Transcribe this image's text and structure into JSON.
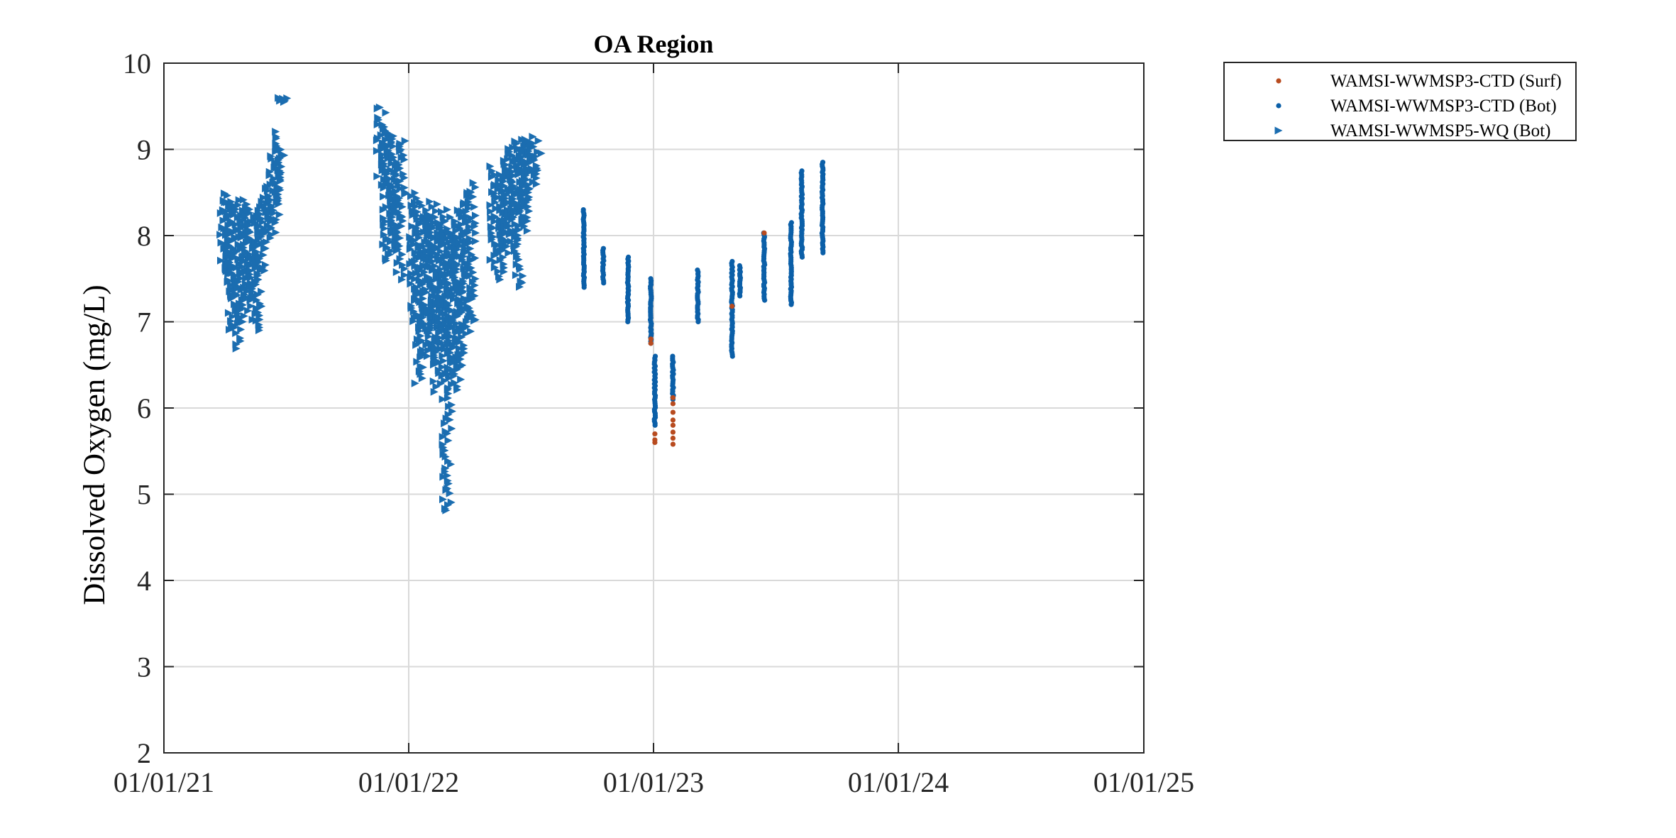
{
  "chart_data": {
    "type": "scatter",
    "title": "OA Region",
    "xlabel": "",
    "ylabel": "Dissolved Oxygen (mg/L)",
    "xlim": [
      "2021-01-01",
      "2025-01-01"
    ],
    "ylim": [
      2,
      10
    ],
    "x_ticks": [
      "01/01/21",
      "01/01/22",
      "01/01/23",
      "01/01/24",
      "01/01/25"
    ],
    "y_ticks": [
      "2",
      "3",
      "4",
      "5",
      "6",
      "7",
      "8",
      "9",
      "10"
    ],
    "grid": true,
    "legend_position": "outside-top-right",
    "series": [
      {
        "name": "WAMSI-WWMSP3-CTD (Surf)",
        "marker": "dot",
        "color": "#b84b1f",
        "points": [
          [
            "2022-12-28",
            6.75
          ],
          [
            "2022-12-28",
            6.8
          ],
          [
            "2023-01-03",
            5.6
          ],
          [
            "2023-01-03",
            5.63
          ],
          [
            "2023-01-03",
            5.7
          ],
          [
            "2023-01-30",
            5.58
          ],
          [
            "2023-01-30",
            5.65
          ],
          [
            "2023-01-30",
            5.72
          ],
          [
            "2023-01-30",
            5.8
          ],
          [
            "2023-01-30",
            5.86
          ],
          [
            "2023-01-30",
            5.95
          ],
          [
            "2023-01-30",
            6.05
          ],
          [
            "2023-01-30",
            6.12
          ],
          [
            "2023-04-28",
            7.18
          ],
          [
            "2023-06-15",
            8.03
          ]
        ]
      },
      {
        "name": "WAMSI-WWMSP3-CTD (Bot)",
        "marker": "dot",
        "color": "#0b5fa8",
        "columns": [
          [
            "2022-09-19",
            7.4,
            8.3
          ],
          [
            "2022-10-18",
            7.45,
            7.85
          ],
          [
            "2022-11-24",
            7.0,
            7.75
          ],
          [
            "2022-12-28",
            6.75,
            7.5
          ],
          [
            "2023-01-03",
            5.8,
            6.6
          ],
          [
            "2023-01-30",
            6.1,
            6.6
          ],
          [
            "2023-03-08",
            7.0,
            7.6
          ],
          [
            "2023-04-28",
            6.6,
            7.7
          ],
          [
            "2023-05-10",
            7.3,
            7.65
          ],
          [
            "2023-06-15",
            7.25,
            8.03
          ],
          [
            "2023-07-25",
            7.2,
            8.15
          ],
          [
            "2023-08-10",
            7.75,
            8.75
          ],
          [
            "2023-09-10",
            7.8,
            8.85
          ]
        ]
      },
      {
        "name": "WAMSI-WWMSP5-WQ (Bot)",
        "marker": "triangle-right",
        "color": "#1b6db0",
        "ranges": [
          [
            "2021-04-01",
            7.6,
            8.5
          ],
          [
            "2021-04-08",
            7.3,
            8.4
          ],
          [
            "2021-04-15",
            6.9,
            8.4
          ],
          [
            "2021-04-22",
            6.7,
            8.3
          ],
          [
            "2021-04-29",
            7.0,
            8.4
          ],
          [
            "2021-05-06",
            7.3,
            8.4
          ],
          [
            "2021-05-13",
            7.0,
            8.3
          ],
          [
            "2021-05-20",
            6.9,
            8.3
          ],
          [
            "2021-05-27",
            7.5,
            8.4
          ],
          [
            "2021-06-03",
            7.9,
            8.6
          ],
          [
            "2021-06-10",
            8.0,
            8.9
          ],
          [
            "2021-06-17",
            8.2,
            9.0
          ],
          [
            "2021-06-24",
            8.4,
            9.2
          ],
          [
            "2021-06-28",
            9.55,
            9.6
          ],
          [
            "2021-11-22",
            8.6,
            9.5
          ],
          [
            "2021-11-29",
            7.7,
            9.3
          ],
          [
            "2021-12-06",
            7.8,
            9.2
          ],
          [
            "2021-12-13",
            7.9,
            9.1
          ],
          [
            "2021-12-20",
            7.5,
            9.1
          ],
          [
            "2022-01-10",
            7.0,
            8.5
          ],
          [
            "2022-01-17",
            6.3,
            8.4
          ],
          [
            "2022-01-24",
            6.6,
            8.3
          ],
          [
            "2022-01-31",
            6.9,
            8.2
          ],
          [
            "2022-02-07",
            6.5,
            8.4
          ],
          [
            "2022-02-14",
            6.2,
            8.2
          ],
          [
            "2022-02-21",
            6.7,
            8.3
          ],
          [
            "2022-02-28",
            4.8,
            8.0
          ],
          [
            "2022-03-07",
            6.4,
            8.2
          ],
          [
            "2022-03-14",
            6.2,
            8.1
          ],
          [
            "2022-03-21",
            6.5,
            8.3
          ],
          [
            "2022-03-28",
            6.9,
            8.5
          ],
          [
            "2022-04-04",
            7.0,
            8.6
          ],
          [
            "2022-05-09",
            7.6,
            8.8
          ],
          [
            "2022-05-16",
            7.5,
            8.7
          ],
          [
            "2022-05-23",
            7.8,
            8.9
          ],
          [
            "2022-05-30",
            8.1,
            9.0
          ],
          [
            "2022-06-06",
            7.9,
            9.1
          ],
          [
            "2022-06-13",
            7.4,
            9.0
          ],
          [
            "2022-06-20",
            8.0,
            9.1
          ],
          [
            "2022-06-27",
            8.3,
            9.1
          ],
          [
            "2022-07-04",
            8.5,
            9.1
          ],
          [
            "2022-07-11",
            8.7,
            9.15
          ]
        ]
      }
    ]
  }
}
